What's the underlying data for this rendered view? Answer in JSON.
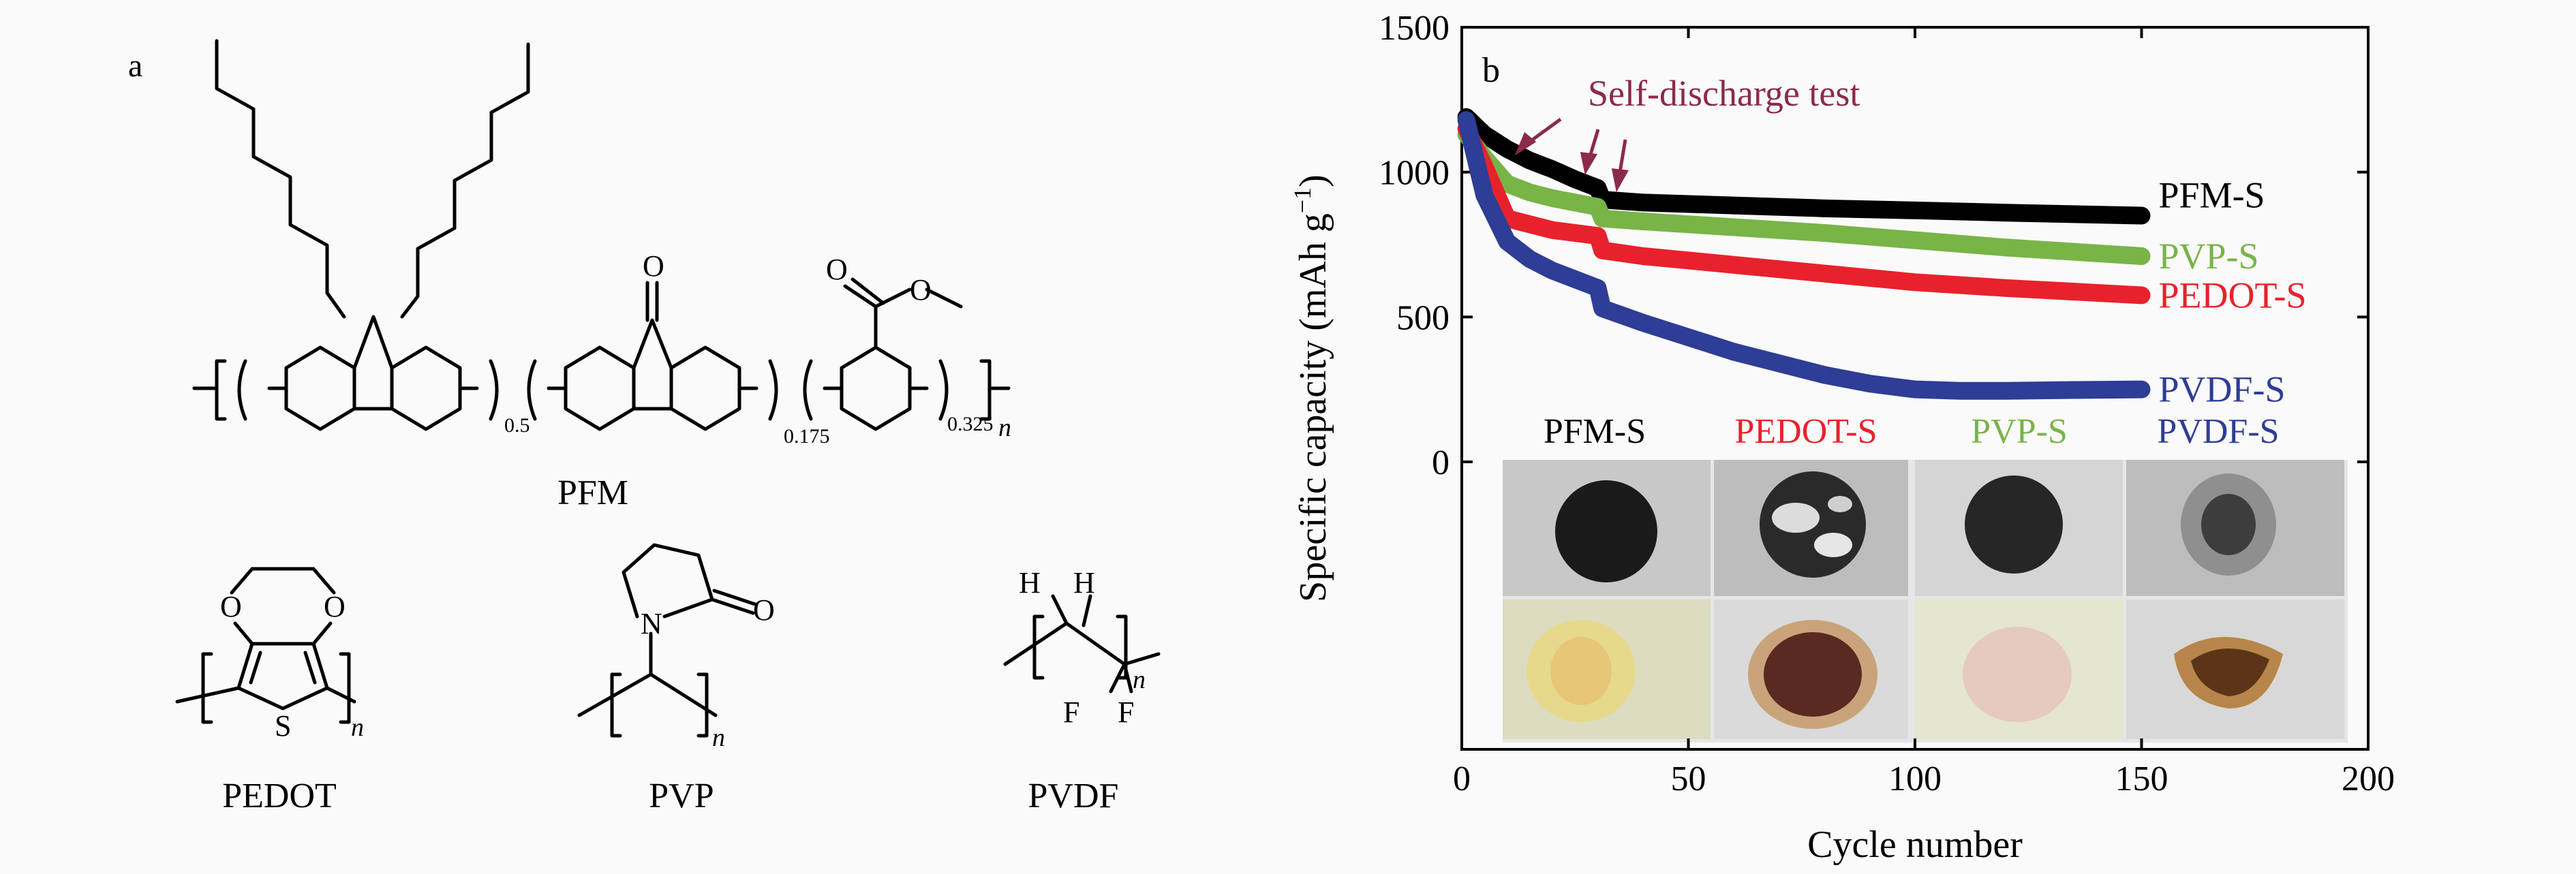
{
  "panel_a": {
    "label": "a",
    "pfm": {
      "name": "PFM",
      "sub_1": "0.5",
      "sub_2": "0.175",
      "sub_3": "0.325",
      "sub_n": "n",
      "atom_o_ketone": "O",
      "atom_o_ester_carbonyl": "O",
      "atom_o_ester": "O"
    },
    "pedot": {
      "name": "PEDOT",
      "atom_o1": "O",
      "atom_o2": "O",
      "atom_s": "S",
      "sub_n": "n"
    },
    "pvp": {
      "name": "PVP",
      "atom_n": "N",
      "atom_o": "O",
      "sub_n": "n"
    },
    "pvdf": {
      "name": "PVDF",
      "atom_h1": "H",
      "atom_h2": "H",
      "atom_f1": "F",
      "atom_f2": "F",
      "sub_n": "n"
    }
  },
  "panel_b": {
    "label": "b",
    "annotation": "Self-discharge test",
    "photo_labels": [
      "PFM-S",
      "PEDOT-S",
      "PVP-S",
      "PVDF-S"
    ],
    "photo_label_colors": [
      "#000000",
      "#e8222c",
      "#79b447",
      "#2e3d95"
    ]
  },
  "chart_data": {
    "type": "line",
    "xlabel": "Cycle number",
    "ylabel": "Specific capacity (mAh g",
    "ylabel_sup": "−1",
    "ylabel_close": ")",
    "xlim": [
      0,
      200
    ],
    "ylim": [
      0,
      1500
    ],
    "xticks": [
      0,
      50,
      100,
      150,
      200
    ],
    "yticks": [
      0,
      500,
      1000,
      1500
    ],
    "grid": false,
    "series": [
      {
        "name": "PFM-S",
        "color": "#000000",
        "x": [
          1,
          5,
          10,
          15,
          20,
          25,
          30,
          31,
          40,
          60,
          80,
          100,
          120,
          150
        ],
        "y": [
          1190,
          1130,
          1080,
          1040,
          1010,
          975,
          945,
          905,
          895,
          885,
          875,
          868,
          860,
          850
        ]
      },
      {
        "name": "PVP-S",
        "color": "#79b447",
        "x": [
          1,
          5,
          10,
          15,
          20,
          25,
          30,
          31,
          40,
          60,
          80,
          100,
          120,
          150
        ],
        "y": [
          1130,
          1050,
          960,
          930,
          910,
          895,
          880,
          840,
          830,
          810,
          790,
          765,
          740,
          710
        ]
      },
      {
        "name": "PEDOT-S",
        "color": "#e8222c",
        "x": [
          1,
          5,
          10,
          15,
          20,
          25,
          30,
          31,
          40,
          60,
          80,
          100,
          120,
          150
        ],
        "y": [
          1150,
          1020,
          840,
          820,
          800,
          790,
          780,
          730,
          710,
          680,
          650,
          620,
          600,
          575
        ]
      },
      {
        "name": "PVDF-S",
        "color": "#2e3d95",
        "x": [
          1,
          5,
          10,
          15,
          20,
          25,
          30,
          31,
          40,
          50,
          60,
          70,
          80,
          90,
          100,
          110,
          120,
          135,
          150
        ],
        "y": [
          1180,
          920,
          760,
          700,
          660,
          630,
          600,
          530,
          480,
          430,
          380,
          340,
          300,
          270,
          250,
          245,
          245,
          248,
          250
        ]
      }
    ]
  }
}
